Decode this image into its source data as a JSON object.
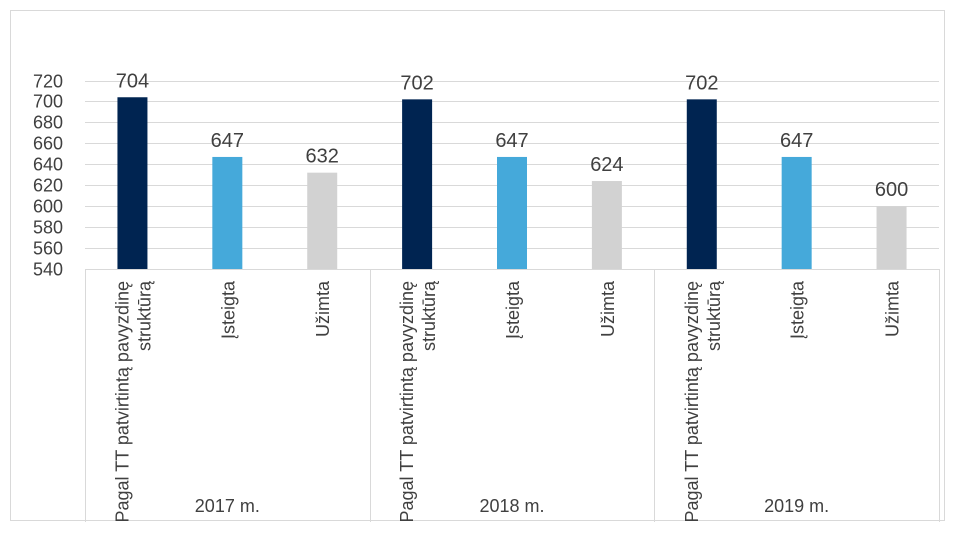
{
  "chart_data": {
    "type": "bar",
    "groups": [
      {
        "label": "2017 m.",
        "bars": [
          {
            "category": "Pagal TT patvirtintą pavyzdinę struktūrą",
            "value": 704,
            "color": "#002451"
          },
          {
            "category": "Įsteigta",
            "value": 647,
            "color": "#45A9DA"
          },
          {
            "category": "Užimta",
            "value": 632,
            "color": "#D2D2D2"
          }
        ]
      },
      {
        "label": "2018 m.",
        "bars": [
          {
            "category": "Pagal TT patvirtintą pavyzdinę struktūrą",
            "value": 702,
            "color": "#002451"
          },
          {
            "category": "Įsteigta",
            "value": 647,
            "color": "#45A9DA"
          },
          {
            "category": "Užimta",
            "value": 624,
            "color": "#D2D2D2"
          }
        ]
      },
      {
        "label": "2019 m.",
        "bars": [
          {
            "category": "Pagal TT patvirtintą pavyzdinę struktūrą",
            "value": 702,
            "color": "#002451"
          },
          {
            "category": "Įsteigta",
            "value": 647,
            "color": "#45A9DA"
          },
          {
            "category": "Užimta",
            "value": 600,
            "color": "#D2D2D2"
          }
        ]
      }
    ],
    "ylim": [
      540,
      720
    ],
    "yticks": [
      540,
      560,
      580,
      600,
      620,
      640,
      660,
      680,
      700,
      720
    ],
    "grid": true,
    "data_labels": true,
    "title": "",
    "xlabel": "",
    "ylabel": ""
  }
}
